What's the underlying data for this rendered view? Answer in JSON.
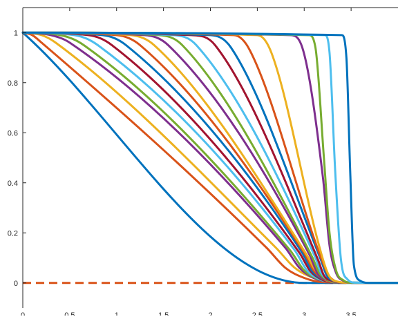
{
  "chart_data": {
    "type": "line",
    "title": "",
    "xlabel": "",
    "ylabel": "",
    "xlim": [
      0,
      4
    ],
    "ylim": [
      -0.1,
      1.1
    ],
    "xticks": [
      0,
      0.5,
      1,
      1.5,
      2,
      2.5,
      3,
      3.5
    ],
    "xtick_labels": [
      "0",
      "0.5",
      "1",
      "1.5",
      "2",
      "2.5",
      "3",
      "3.5"
    ],
    "yticks": [
      0,
      0.2,
      0.4,
      0.6,
      0.8,
      1
    ],
    "ytick_labels": [
      "0",
      "0.2",
      "0.4",
      "0.6",
      "0.8",
      "1"
    ],
    "grid": false,
    "legend": "none",
    "colors": [
      "#0072BD",
      "#D95319",
      "#EDB120",
      "#7E2F8E",
      "#77AC30",
      "#4DBEEE",
      "#A2142F"
    ],
    "series": [
      {
        "color": "#0072BD",
        "x": [
          0,
          3.0,
          3.05,
          4
        ],
        "y": [
          1,
          0,
          0,
          0
        ]
      },
      {
        "color": "#D95319",
        "x": [
          0,
          0.1,
          0.2,
          2.6,
          2.8,
          3.0,
          3.2,
          4
        ],
        "y": [
          1,
          0.99,
          0.96,
          0.14,
          0.06,
          0.02,
          0.003,
          0
        ]
      },
      {
        "color": "#EDB120",
        "x": [
          0,
          0.2,
          0.35,
          2.7,
          2.9,
          3.1,
          3.3,
          4
        ],
        "y": [
          1,
          0.99,
          0.96,
          0.14,
          0.06,
          0.02,
          0.003,
          0
        ]
      },
      {
        "color": "#7E2F8E",
        "x": [
          0,
          0.3,
          0.5,
          2.8,
          2.95,
          3.1,
          3.3,
          4
        ],
        "y": [
          1,
          0.99,
          0.96,
          0.14,
          0.06,
          0.02,
          0.003,
          0
        ]
      },
      {
        "color": "#77AC30",
        "x": [
          0,
          0.4,
          0.65,
          2.85,
          3.0,
          3.15,
          3.3,
          4
        ],
        "y": [
          1,
          0.99,
          0.95,
          0.13,
          0.05,
          0.015,
          0.003,
          0
        ]
      },
      {
        "color": "#4DBEEE",
        "x": [
          0,
          0.55,
          0.8,
          2.9,
          3.03,
          3.16,
          3.3,
          4
        ],
        "y": [
          1,
          0.99,
          0.95,
          0.13,
          0.05,
          0.015,
          0.003,
          0
        ]
      },
      {
        "color": "#A2142F",
        "x": [
          0,
          0.7,
          0.95,
          2.95,
          3.06,
          3.18,
          3.3,
          4
        ],
        "y": [
          1,
          0.99,
          0.95,
          0.12,
          0.05,
          0.015,
          0.002,
          0
        ]
      },
      {
        "color": "#0072BD",
        "x": [
          0,
          0.85,
          1.1,
          2.98,
          3.08,
          3.2,
          3.35,
          4
        ],
        "y": [
          1,
          0.99,
          0.95,
          0.12,
          0.05,
          0.015,
          0.002,
          0
        ]
      },
      {
        "color": "#D95319",
        "x": [
          0,
          1.0,
          1.25,
          3.0,
          3.1,
          3.22,
          3.35,
          4
        ],
        "y": [
          1,
          0.99,
          0.95,
          0.12,
          0.05,
          0.012,
          0.002,
          0
        ]
      },
      {
        "color": "#EDB120",
        "x": [
          0,
          1.15,
          1.4,
          3.03,
          3.12,
          3.23,
          3.35,
          4
        ],
        "y": [
          1,
          0.99,
          0.95,
          0.11,
          0.05,
          0.012,
          0.002,
          0
        ]
      },
      {
        "color": "#7E2F8E",
        "x": [
          0,
          1.3,
          1.55,
          3.06,
          3.14,
          3.25,
          3.38,
          4
        ],
        "y": [
          1,
          0.99,
          0.95,
          0.11,
          0.04,
          0.01,
          0.002,
          0
        ]
      },
      {
        "color": "#77AC30",
        "x": [
          0,
          1.45,
          1.7,
          3.09,
          3.16,
          3.26,
          3.38,
          4
        ],
        "y": [
          1,
          0.99,
          0.95,
          0.1,
          0.04,
          0.01,
          0.002,
          0
        ]
      },
      {
        "color": "#4DBEEE",
        "x": [
          0,
          1.6,
          1.85,
          3.12,
          3.18,
          3.28,
          3.4,
          4
        ],
        "y": [
          1,
          0.99,
          0.95,
          0.1,
          0.04,
          0.01,
          0.002,
          0
        ]
      },
      {
        "color": "#A2142F",
        "x": [
          0,
          1.8,
          2.05,
          3.15,
          3.21,
          3.3,
          3.42,
          4
        ],
        "y": [
          1,
          0.99,
          0.95,
          0.09,
          0.03,
          0.008,
          0.001,
          0
        ]
      },
      {
        "color": "#0072BD",
        "x": [
          0,
          2.0,
          2.22,
          3.18,
          3.24,
          3.32,
          3.44,
          4
        ],
        "y": [
          1,
          0.99,
          0.94,
          0.09,
          0.03,
          0.008,
          0.001,
          0
        ]
      },
      {
        "color": "#D95319",
        "x": [
          0,
          2.25,
          2.42,
          3.2,
          3.26,
          3.34,
          3.45,
          4
        ],
        "y": [
          1,
          0.99,
          0.93,
          0.08,
          0.03,
          0.006,
          0.001,
          0
        ]
      },
      {
        "color": "#EDB120",
        "x": [
          0,
          2.5,
          2.65,
          3.22,
          3.28,
          3.36,
          3.46,
          4
        ],
        "y": [
          1,
          0.99,
          0.92,
          0.07,
          0.02,
          0.005,
          0.001,
          0
        ]
      },
      {
        "color": "#7E2F8E",
        "x": [
          0,
          2.85,
          2.98,
          3.2,
          3.27,
          3.34,
          3.42,
          3.5,
          4
        ],
        "y": [
          1,
          0.99,
          0.94,
          0.42,
          0.15,
          0.04,
          0.008,
          0.001,
          0
        ]
      },
      {
        "color": "#77AC30",
        "x": [
          0,
          3.05,
          3.12,
          3.21,
          3.27,
          3.34,
          3.42,
          3.5,
          4
        ],
        "y": [
          1,
          0.99,
          0.94,
          0.5,
          0.2,
          0.05,
          0.01,
          0.001,
          0
        ]
      },
      {
        "color": "#4DBEEE",
        "x": [
          0,
          3.22,
          3.27,
          3.33,
          3.39,
          3.46,
          3.55,
          4
        ],
        "y": [
          1,
          0.99,
          0.92,
          0.45,
          0.1,
          0.015,
          0.001,
          0
        ]
      },
      {
        "color": "#0072BD",
        "x": [
          0,
          3.4,
          3.45,
          3.49,
          3.53,
          3.6,
          3.7,
          4
        ],
        "y": [
          1,
          0.99,
          0.9,
          0.45,
          0.07,
          0.008,
          0,
          0
        ]
      }
    ],
    "reference_lines": [
      {
        "y": 0,
        "color": "#D95319",
        "style": "dashed"
      }
    ]
  }
}
